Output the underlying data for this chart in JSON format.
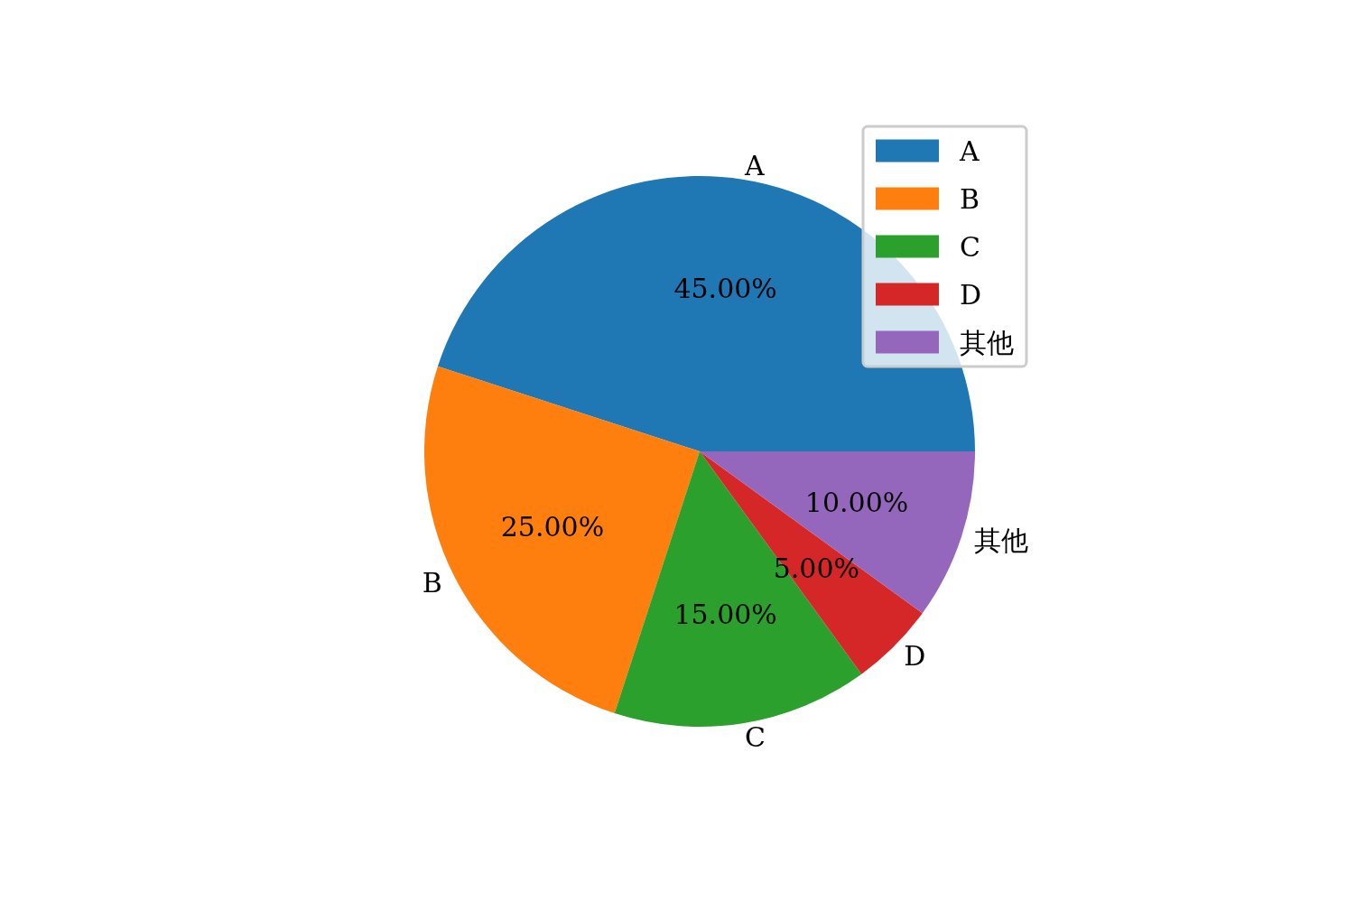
{
  "chart_data": {
    "type": "pie",
    "categories": [
      "A",
      "B",
      "C",
      "D",
      "其他"
    ],
    "values": [
      45,
      25,
      15,
      5,
      10
    ],
    "colors": [
      "#1f77b4",
      "#ff7f0e",
      "#2ca02c",
      "#d62728",
      "#9467bd"
    ],
    "value_labels": [
      "45.00%",
      "25.00%",
      "15.00%",
      "5.00%",
      "10.00%"
    ],
    "legend": "top right"
  }
}
